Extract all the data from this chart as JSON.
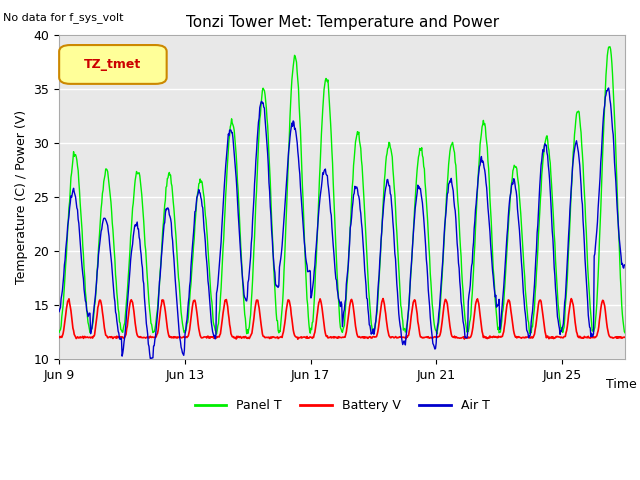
{
  "title": "Tonzi Tower Met: Temperature and Power",
  "ylabel": "Temperature (C) / Power (V)",
  "xlabel": "Time",
  "top_left_text": "No data for f_sys_volt",
  "legend_label": "TZ_tmet",
  "ylim": [
    10,
    40
  ],
  "yticks": [
    10,
    15,
    20,
    25,
    30,
    35,
    40
  ],
  "xtick_labels": [
    "Jun 9",
    "Jun 13",
    "Jun 17",
    "Jun 21",
    "Jun 25"
  ],
  "xtick_positions": [
    0,
    4,
    8,
    12,
    16
  ],
  "background_color": "#e8e8e8",
  "panel_color": "#00ee00",
  "battery_color": "#ff0000",
  "air_color": "#0000cc",
  "legend_items": [
    "Panel T",
    "Battery V",
    "Air T"
  ],
  "num_days": 18
}
